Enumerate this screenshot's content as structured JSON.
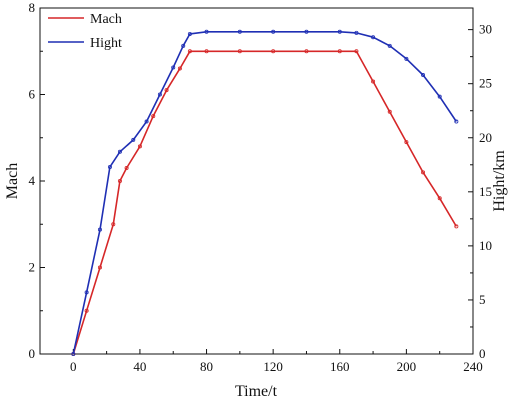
{
  "chart_data": {
    "type": "line",
    "xlabel": "Time/t",
    "ylabel_left": "Mach",
    "ylabel_right": "Hight/km",
    "xlim": [
      -20,
      240
    ],
    "ylim_left": [
      0,
      8
    ],
    "ylim_right": [
      0,
      32
    ],
    "x_ticks": [
      "0",
      "40",
      "80",
      "120",
      "160",
      "200",
      "240"
    ],
    "y_left_ticks": [
      "0",
      "2",
      "4",
      "6",
      "8"
    ],
    "y_right_ticks": [
      "0",
      "5",
      "10",
      "15",
      "20",
      "25",
      "30"
    ],
    "legend_position": "top-left",
    "grid": false,
    "series": [
      {
        "name": "Mach",
        "axis": "left",
        "color": "#d62728",
        "x": [
          0,
          8,
          16,
          24,
          28,
          32,
          40,
          48,
          56,
          64,
          70,
          80,
          100,
          120,
          140,
          160,
          170,
          180,
          190,
          200,
          210,
          220,
          230
        ],
        "y": [
          0,
          1.0,
          2.0,
          3.0,
          4.0,
          4.3,
          4.8,
          5.5,
          6.1,
          6.6,
          7.0,
          7.0,
          7.0,
          7.0,
          7.0,
          7.0,
          7.0,
          6.3,
          5.6,
          4.9,
          4.2,
          3.6,
          2.95
        ]
      },
      {
        "name": "Hight",
        "axis": "right",
        "color": "#1f2fb4",
        "x": [
          0,
          8,
          16,
          22,
          28,
          36,
          44,
          52,
          60,
          66,
          70,
          80,
          100,
          120,
          140,
          160,
          170,
          180,
          190,
          200,
          210,
          220,
          230
        ],
        "y": [
          0,
          5.7,
          11.5,
          17.3,
          18.7,
          19.8,
          21.5,
          24.0,
          26.5,
          28.5,
          29.6,
          29.8,
          29.8,
          29.8,
          29.8,
          29.8,
          29.7,
          29.3,
          28.5,
          27.3,
          25.8,
          23.8,
          21.5
        ]
      }
    ]
  }
}
